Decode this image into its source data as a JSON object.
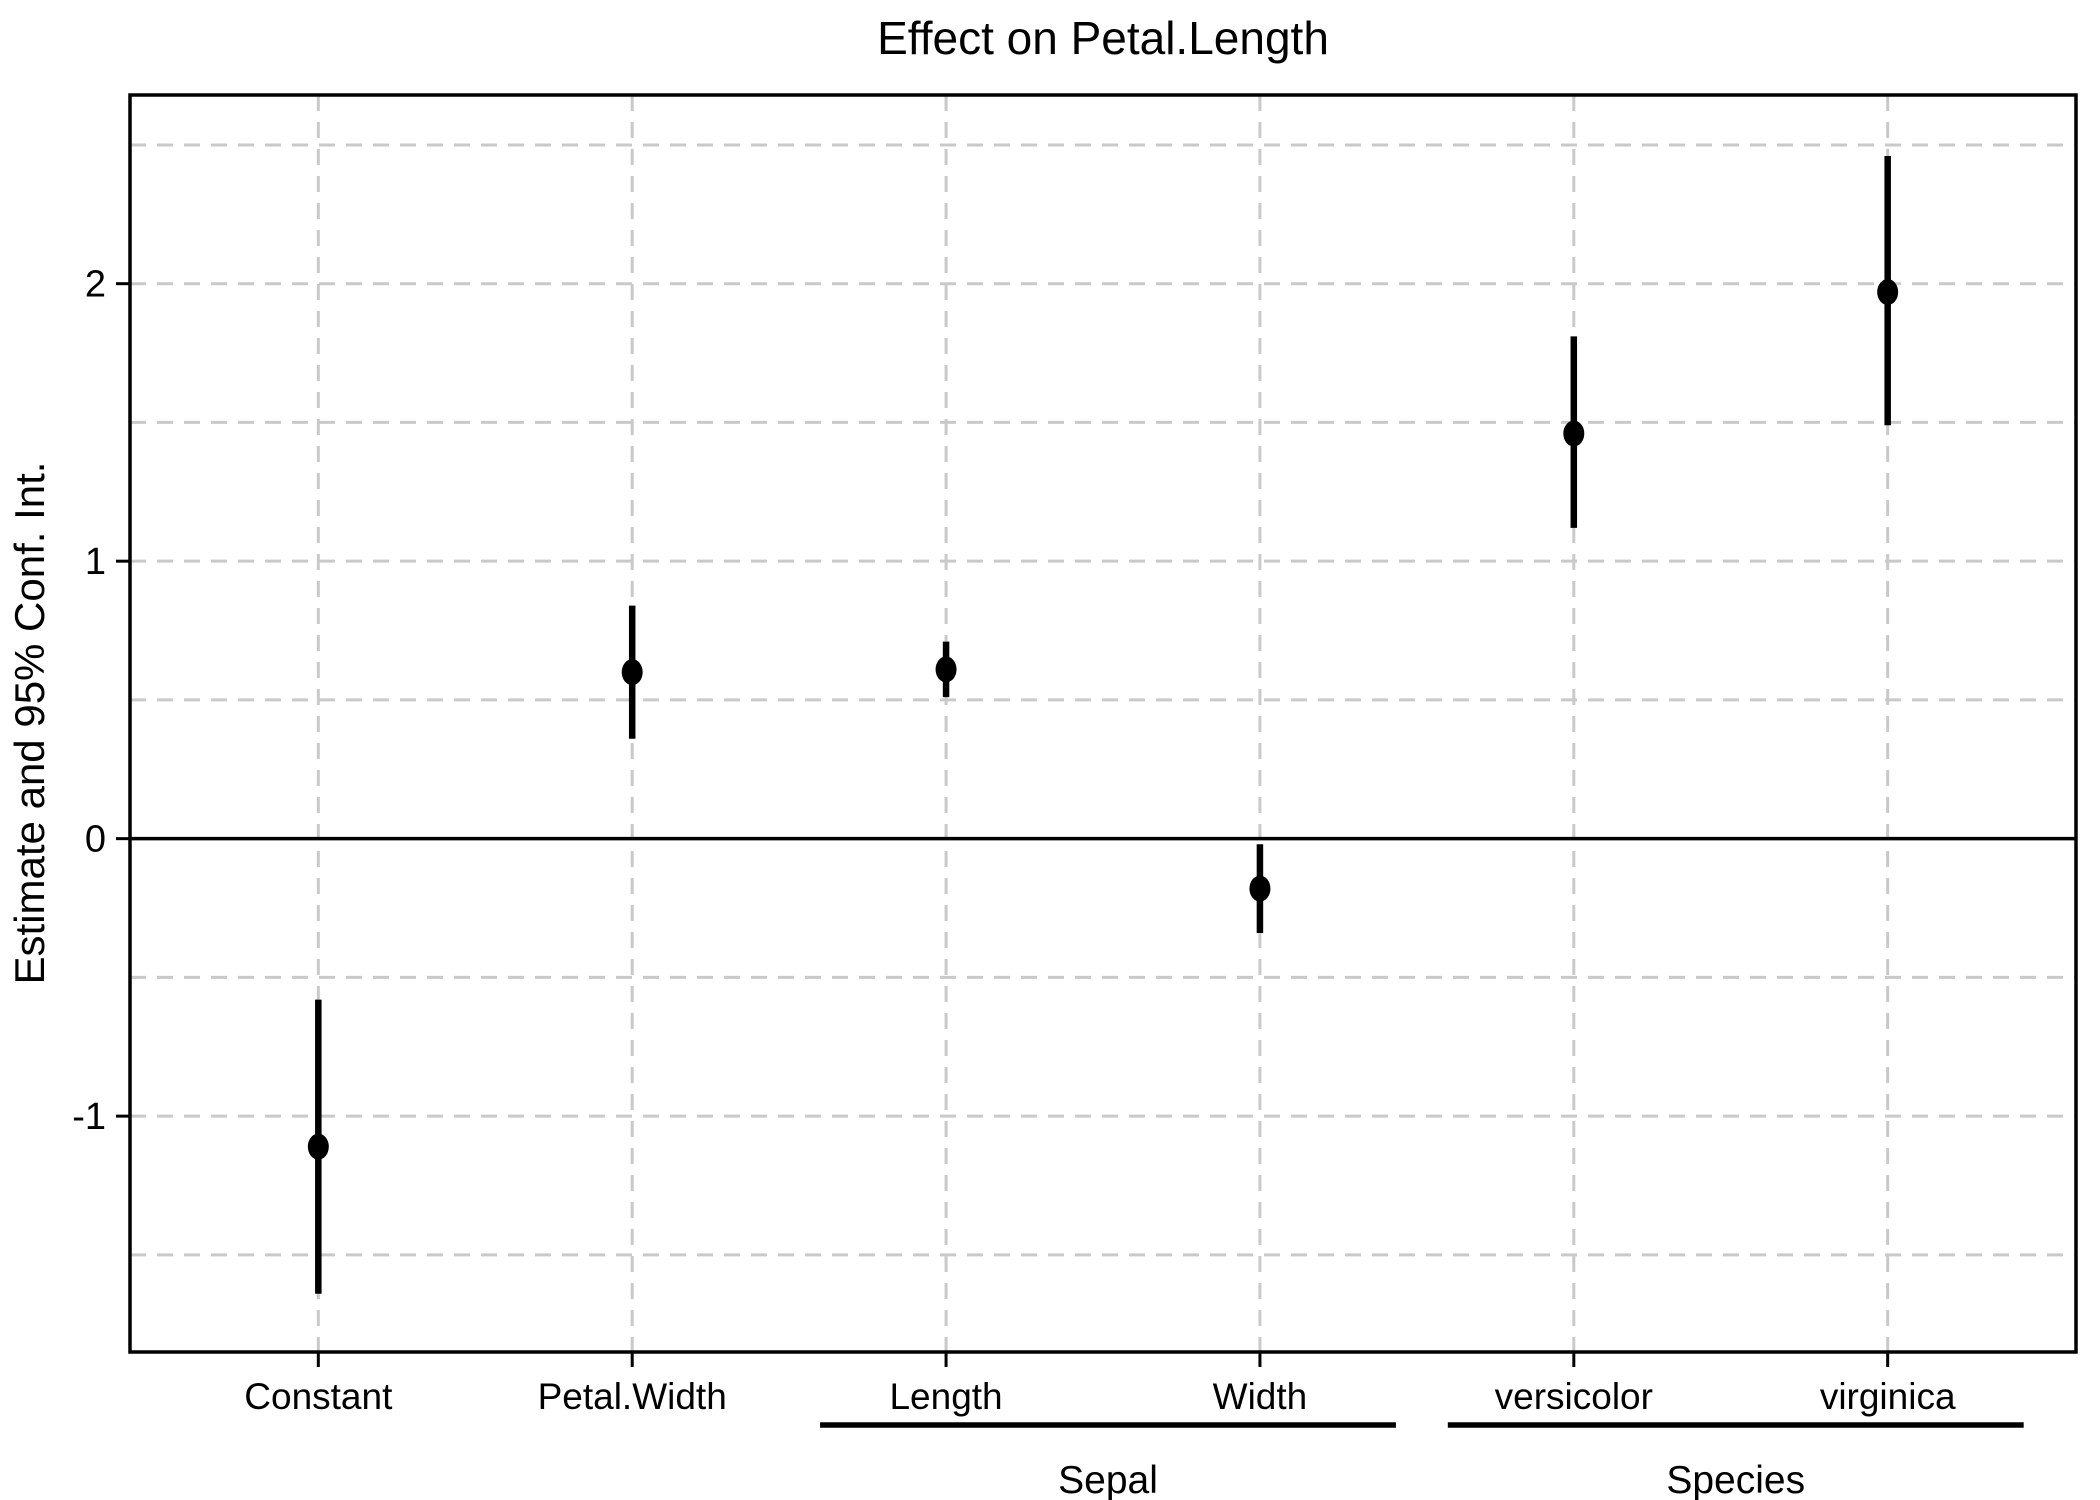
{
  "chart_data": {
    "type": "scatter",
    "subtype": "dot-and-whisker coefficient plot",
    "title": "Effect on Petal.Length",
    "xlabel": "",
    "ylabel": "Estimate and 95% Conf. Int.",
    "categories": [
      "Constant",
      "Petal.Width",
      "Length",
      "Width",
      "versicolor",
      "virginica"
    ],
    "groups": [
      {
        "label": "Sepal",
        "span": [
          2,
          3
        ]
      },
      {
        "label": "Species",
        "span": [
          4,
          5
        ]
      }
    ],
    "series": [
      {
        "name": "Estimate and 95% Conf. Int.",
        "points": [
          {
            "category": "Constant",
            "estimate": -1.11,
            "ci_low": -1.64,
            "ci_high": -0.58
          },
          {
            "category": "Petal.Width",
            "estimate": 0.6,
            "ci_low": 0.36,
            "ci_high": 0.84
          },
          {
            "category": "Length",
            "estimate": 0.61,
            "ci_low": 0.51,
            "ci_high": 0.71
          },
          {
            "category": "Width",
            "estimate": -0.18,
            "ci_low": -0.34,
            "ci_high": -0.02
          },
          {
            "category": "versicolor",
            "estimate": 1.46,
            "ci_low": 1.12,
            "ci_high": 1.81
          },
          {
            "category": "virginica",
            "estimate": 1.97,
            "ci_low": 1.49,
            "ci_high": 2.46
          }
        ]
      }
    ],
    "ylim": [
      -1.85,
      2.68
    ],
    "yticks": [
      -1,
      0,
      1,
      2
    ],
    "grid": {
      "horizontal_step": 0.5,
      "style": "dashed",
      "zero_line": "solid"
    },
    "legend_position": "none"
  },
  "style": {
    "background": "#ffffff",
    "point_color": "#000000",
    "errorbar_color": "#000000",
    "grid_color": "#c9c9c9",
    "zero_line_color": "#000000",
    "border_color": "#000000",
    "text_color": "#000000"
  }
}
